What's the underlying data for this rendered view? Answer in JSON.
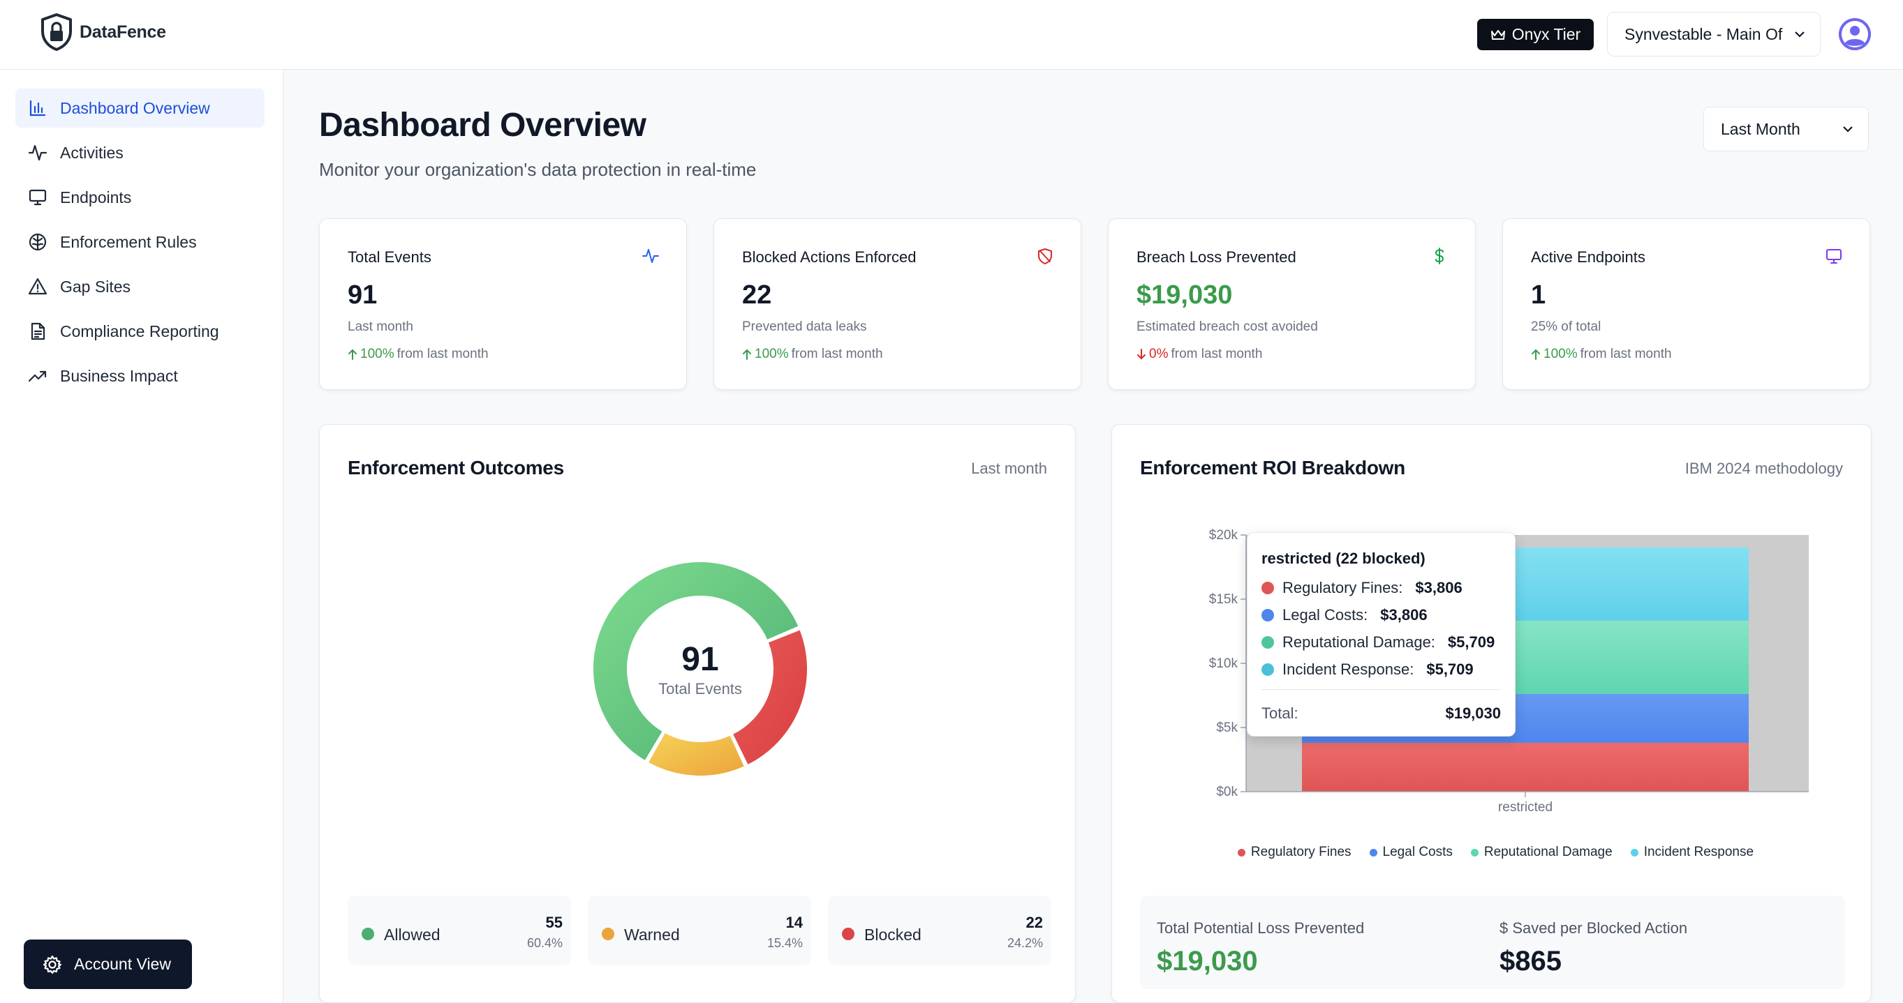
{
  "header": {
    "brand_name": "DataFence",
    "tier_label": "Onyx Tier",
    "org_select_value": "Synvestable - Main Of"
  },
  "sidebar": {
    "items": [
      {
        "label": "Dashboard Overview",
        "icon": "bar-chart-icon",
        "active": true
      },
      {
        "label": "Activities",
        "icon": "activity-icon"
      },
      {
        "label": "Endpoints",
        "icon": "monitor-icon"
      },
      {
        "label": "Enforcement Rules",
        "icon": "brain-icon"
      },
      {
        "label": "Gap Sites",
        "icon": "warning-triangle-icon"
      },
      {
        "label": "Compliance Reporting",
        "icon": "file-text-icon"
      },
      {
        "label": "Business Impact",
        "icon": "trending-up-icon"
      }
    ],
    "account_button": "Account View"
  },
  "main": {
    "title": "Dashboard Overview",
    "subtitle": "Monitor your organization's data protection in real-time",
    "range_select_value": "Last Month"
  },
  "stats": [
    {
      "label": "Total Events",
      "value": "91",
      "sub": "Last month",
      "trend_value": "100%",
      "trend_dir": "up",
      "trend_text": "from last month",
      "icon": "activity-icon",
      "icon_color": "#2563eb"
    },
    {
      "label": "Blocked Actions Enforced",
      "value": "22",
      "sub": "Prevented data leaks",
      "trend_value": "100%",
      "trend_dir": "up",
      "trend_text": "from last month",
      "icon": "shield-off-icon",
      "icon_color": "#dc2626"
    },
    {
      "label": "Breach Loss Prevented",
      "value": "$19,030",
      "sub": "Estimated breach cost avoided",
      "trend_value": "0%",
      "trend_dir": "down",
      "trend_text": "from last month",
      "icon": "dollar-icon",
      "icon_color": "#16a34a"
    },
    {
      "label": "Active Endpoints",
      "value": "1",
      "sub": "25% of total",
      "trend_value": "100%",
      "trend_dir": "up",
      "trend_text": "from last month",
      "icon": "monitor-icon",
      "icon_color": "#7c3aed"
    }
  ],
  "enforcement_outcomes": {
    "title": "Enforcement Outcomes",
    "period": "Last month",
    "total": "91",
    "total_label": "Total Events",
    "items": [
      {
        "name": "Allowed",
        "count": "55",
        "pct": "60.4%",
        "color": "#4caf72"
      },
      {
        "name": "Warned",
        "count": "14",
        "pct": "15.4%",
        "color": "#eba43a"
      },
      {
        "name": "Blocked",
        "count": "22",
        "pct": "24.2%",
        "color": "#dc4545"
      }
    ]
  },
  "roi": {
    "title": "Enforcement ROI Breakdown",
    "methodology": "IBM 2024 methodology",
    "tooltip": {
      "title": "restricted (22 blocked)",
      "total_label": "Total:",
      "total_value": "$19,030",
      "rows": [
        {
          "label": "Regulatory Fines:",
          "value": "$3,806"
        },
        {
          "label": "Legal Costs:",
          "value": "$3,806"
        },
        {
          "label": "Reputational Damage:",
          "value": "$5,709"
        },
        {
          "label": "Incident Response:",
          "value": "$5,709"
        }
      ]
    },
    "summary": {
      "loss_label": "Total Potential Loss Prevented",
      "loss_value": "$19,030",
      "saved_label": "$ Saved per Blocked Action",
      "saved_value": "$865"
    }
  },
  "chart_data": {
    "type": "bar",
    "stacked": true,
    "categories": [
      "restricted"
    ],
    "series": [
      {
        "name": "Regulatory Fines",
        "values": [
          3806
        ],
        "color": "#e05555"
      },
      {
        "name": "Legal Costs",
        "values": [
          3806
        ],
        "color": "#4f86ee"
      },
      {
        "name": "Reputational Damage",
        "values": [
          5709
        ],
        "color": "#5fd6b0"
      },
      {
        "name": "Incident Response",
        "values": [
          5709
        ],
        "color": "#5fd0ea"
      }
    ],
    "y_ticks": [
      "$0k",
      "$5k",
      "$10k",
      "$15k",
      "$20k"
    ],
    "ylim": [
      0,
      20000
    ],
    "legend": "bottom"
  }
}
